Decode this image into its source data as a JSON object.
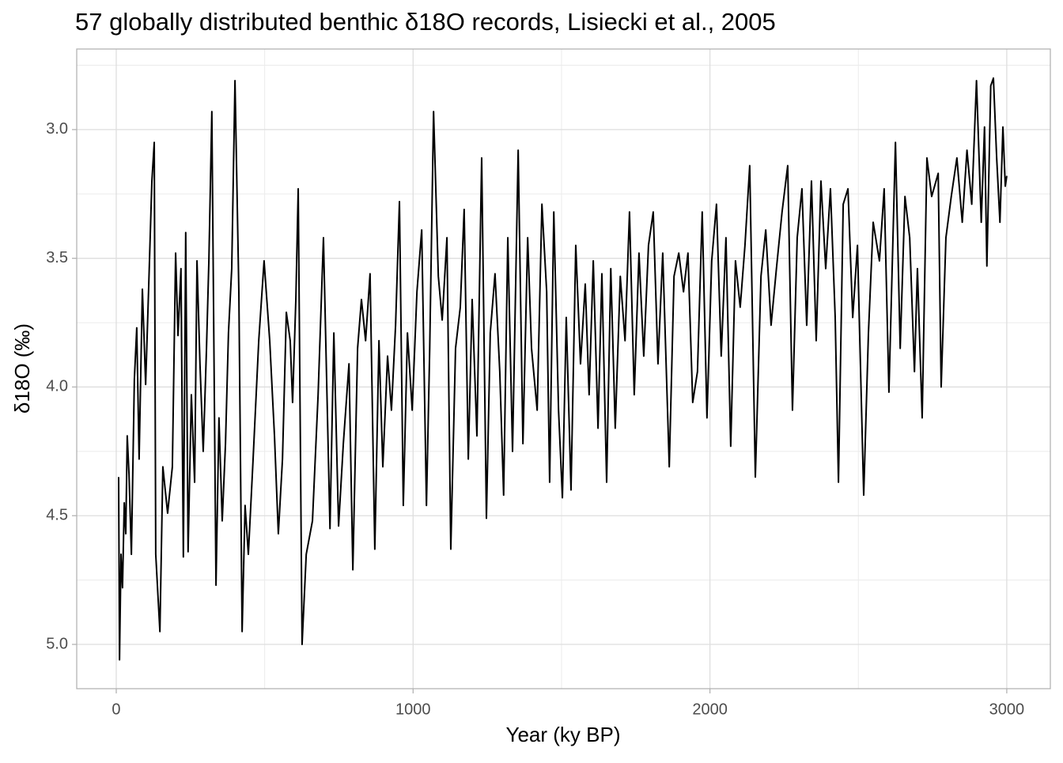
{
  "chart_data": {
    "type": "line",
    "title": "57 globally distributed benthic δ18O records, Lisiecki et al., 2005",
    "x_label": "Year (ky BP)",
    "y_label": "δ18O (‰)",
    "color": "#000000",
    "grid": true,
    "y_reversed": true,
    "xlim": [
      -133.2,
      3146.8
    ],
    "ylim": [
      2.687,
      5.172
    ],
    "xticks": [
      0,
      1000,
      2000,
      3000
    ],
    "yticks": [
      {
        "value": 3,
        "label": "3.0"
      },
      3.5,
      {
        "value": 4,
        "label": "4.0"
      },
      4.5,
      {
        "value": 5,
        "label": "5.0"
      }
    ],
    "x_minor_grid": [
      500,
      1500,
      2500
    ],
    "y_minor_grid": [
      2.75,
      3.25,
      3.75,
      4.25,
      4.75
    ],
    "x": [
      8,
      11,
      16,
      21,
      27,
      32,
      37,
      43,
      51,
      61,
      69,
      77,
      88,
      99,
      109,
      120,
      128,
      133,
      147,
      157,
      173,
      189,
      200,
      208,
      218,
      226,
      234,
      242,
      253,
      264,
      272,
      282,
      293,
      304,
      312,
      322,
      336,
      346,
      357,
      368,
      378,
      389,
      400,
      413,
      424,
      434,
      445,
      461,
      480,
      498,
      517,
      533,
      546,
      560,
      573,
      586,
      594,
      605,
      613,
      626,
      640,
      661,
      680,
      698,
      720,
      733,
      749,
      765,
      784,
      797,
      813,
      826,
      840,
      855,
      871,
      885,
      898,
      914,
      927,
      941,
      954,
      967,
      981,
      997,
      1013,
      1029,
      1045,
      1056,
      1069,
      1085,
      1098,
      1114,
      1127,
      1143,
      1159,
      1172,
      1186,
      1199,
      1215,
      1231,
      1247,
      1260,
      1276,
      1292,
      1305,
      1319,
      1335,
      1354,
      1370,
      1386,
      1399,
      1418,
      1434,
      1450,
      1460,
      1474,
      1490,
      1503,
      1516,
      1532,
      1548,
      1564,
      1580,
      1593,
      1607,
      1623,
      1636,
      1652,
      1666,
      1681,
      1698,
      1714,
      1729,
      1745,
      1761,
      1777,
      1793,
      1809,
      1825,
      1841,
      1863,
      1879,
      1895,
      1911,
      1926,
      1942,
      1958,
      1974,
      1990,
      2006,
      2022,
      2038,
      2054,
      2070,
      2086,
      2102,
      2118,
      2134,
      2153,
      2172,
      2188,
      2206,
      2224,
      2243,
      2262,
      2278,
      2294,
      2310,
      2326,
      2342,
      2358,
      2374,
      2390,
      2406,
      2422,
      2433,
      2449,
      2465,
      2481,
      2497,
      2518,
      2534,
      2550,
      2571,
      2587,
      2603,
      2625,
      2641,
      2657,
      2673,
      2689,
      2699,
      2715,
      2731,
      2747,
      2769,
      2779,
      2795,
      2813,
      2832,
      2850,
      2866,
      2882,
      2898,
      2914,
      2925,
      2933,
      2946,
      2955,
      2966,
      2977,
      2987,
      2995,
      3000
    ],
    "y": [
      4.35,
      5.06,
      4.65,
      4.78,
      4.45,
      4.57,
      4.19,
      4.34,
      4.65,
      3.97,
      3.77,
      4.28,
      3.62,
      3.99,
      3.62,
      3.2,
      3.05,
      4.65,
      4.95,
      4.31,
      4.49,
      4.31,
      3.48,
      3.8,
      3.54,
      4.66,
      3.4,
      4.64,
      4.03,
      4.37,
      3.51,
      3.91,
      4.25,
      3.85,
      3.51,
      2.93,
      4.77,
      4.12,
      4.52,
      4.22,
      3.79,
      3.54,
      2.81,
      3.63,
      4.95,
      4.46,
      4.65,
      4.28,
      3.82,
      3.51,
      3.82,
      4.19,
      4.57,
      4.28,
      3.71,
      3.82,
      4.06,
      3.66,
      3.23,
      5.0,
      4.65,
      4.52,
      4.03,
      3.42,
      4.55,
      3.79,
      4.54,
      4.22,
      3.91,
      4.71,
      3.85,
      3.66,
      3.82,
      3.56,
      4.63,
      3.82,
      4.31,
      3.88,
      4.09,
      3.76,
      3.28,
      4.46,
      3.79,
      4.09,
      3.63,
      3.39,
      4.46,
      3.85,
      2.93,
      3.57,
      3.74,
      3.42,
      4.63,
      3.85,
      3.69,
      3.31,
      4.28,
      3.66,
      4.19,
      3.11,
      4.51,
      3.79,
      3.56,
      3.94,
      4.42,
      3.42,
      4.25,
      3.08,
      4.22,
      3.42,
      3.85,
      4.09,
      3.29,
      3.63,
      4.37,
      3.32,
      4.09,
      4.43,
      3.73,
      4.4,
      3.45,
      3.91,
      3.6,
      4.03,
      3.51,
      4.16,
      3.56,
      4.37,
      3.54,
      4.16,
      3.57,
      3.82,
      3.32,
      4.03,
      3.48,
      3.88,
      3.45,
      3.32,
      3.91,
      3.48,
      4.31,
      3.57,
      3.48,
      3.63,
      3.48,
      4.06,
      3.94,
      3.32,
      4.12,
      3.51,
      3.29,
      3.88,
      3.42,
      4.23,
      3.51,
      3.69,
      3.45,
      3.14,
      4.35,
      3.57,
      3.39,
      3.76,
      3.54,
      3.32,
      3.14,
      4.09,
      3.42,
      3.23,
      3.76,
      3.2,
      3.82,
      3.2,
      3.54,
      3.23,
      3.73,
      4.37,
      3.29,
      3.23,
      3.73,
      3.45,
      4.42,
      3.79,
      3.36,
      3.51,
      3.23,
      4.02,
      3.05,
      3.85,
      3.26,
      3.42,
      3.94,
      3.54,
      4.12,
      3.11,
      3.26,
      3.17,
      4.0,
      3.42,
      3.26,
      3.11,
      3.36,
      3.08,
      3.29,
      2.81,
      3.36,
      2.99,
      3.53,
      2.83,
      2.8,
      3.11,
      3.36,
      2.99,
      3.22,
      3.18
    ]
  }
}
